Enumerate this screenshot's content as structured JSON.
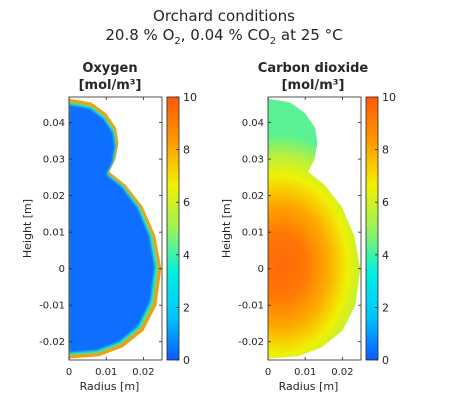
{
  "figure": {
    "title_line1": "Orchard conditions",
    "title_line2": {
      "o2_value": "20.8 % O",
      "o2_sub": "2",
      "co2_value": ",  0.04 % CO",
      "co2_sub": "2",
      "temp": "  at  25 °C"
    }
  },
  "colors": {
    "axis": "#262626",
    "colormap": [
      "#0a5bff",
      "#00c6ff",
      "#00f0e0",
      "#9cf25a",
      "#f4f000",
      "#ff9800",
      "#ff5a0a"
    ]
  },
  "chart_data": [
    {
      "type": "heatmap",
      "title_line1": "Oxygen",
      "title_line2": "[mol/m³]",
      "xlabel": "Radius [m]",
      "ylabel": "Height [m]",
      "xlim": [
        0,
        0.025
      ],
      "ylim": [
        -0.025,
        0.047
      ],
      "xticks": [
        0,
        0.01,
        0.02
      ],
      "xtick_labels": [
        "0",
        "0.01",
        "0.02"
      ],
      "yticks": [
        -0.02,
        -0.01,
        0,
        0.01,
        0.02,
        0.03,
        0.04
      ],
      "ytick_labels": [
        "-0.02",
        "-0.01",
        "0",
        "0.01",
        "0.02",
        "0.03",
        "0.04"
      ],
      "colorbar": {
        "min": 0,
        "max": 10,
        "ticks": [
          0,
          2,
          4,
          6,
          8,
          10
        ],
        "tick_labels": [
          "0",
          "2",
          "4",
          "6",
          "8",
          "10"
        ]
      },
      "field": {
        "core_value": 0.3,
        "surface_value": 8.3,
        "description_unit": "mol/m³"
      }
    },
    {
      "type": "heatmap",
      "title_line1": "Carbon dioxide",
      "title_line2": "[mol/m³]",
      "xlabel": "Radius [m]",
      "ylabel": "Height [m]",
      "xlim": [
        0,
        0.025
      ],
      "ylim": [
        -0.025,
        0.047
      ],
      "xticks": [
        0,
        0.01,
        0.02
      ],
      "xtick_labels": [
        "0",
        "0.01",
        "0.02"
      ],
      "yticks": [
        -0.02,
        -0.01,
        0,
        0.01,
        0.02,
        0.03,
        0.04
      ],
      "ytick_labels": [
        "-0.02",
        "-0.01",
        "0",
        "0.01",
        "0.02",
        "0.03",
        "0.04"
      ],
      "colorbar": {
        "min": 0,
        "max": 10,
        "ticks": [
          0,
          2,
          4,
          6,
          8,
          10
        ],
        "tick_labels": [
          "0",
          "2",
          "4",
          "6",
          "8",
          "10"
        ]
      },
      "field": {
        "core_value": 9.6,
        "surface_value": 4.3,
        "description_unit": "mol/m³"
      }
    }
  ]
}
